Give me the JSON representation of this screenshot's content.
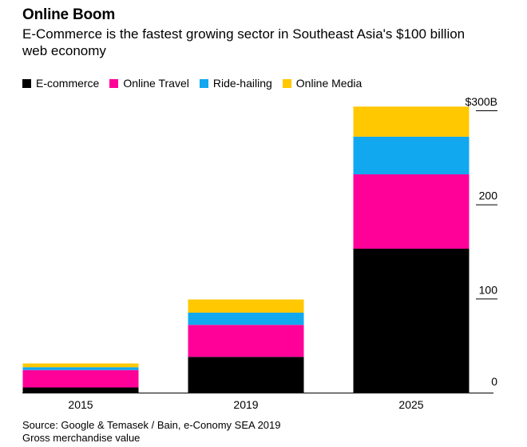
{
  "header": {
    "title": "Online Boom",
    "subtitle": "E-Commerce is the fastest growing sector in Southeast Asia's $100 billion web economy"
  },
  "footer": {
    "source": "Source: Google & Temasek / Bain, e-Conomy SEA 2019",
    "note": "Gross merchandise value"
  },
  "chart_data": {
    "type": "bar",
    "stacked": true,
    "title": "Online Boom",
    "subtitle": "E-Commerce is the fastest growing sector in Southeast Asia's $100 billion web economy",
    "categories": [
      "2015",
      "2019",
      "2025"
    ],
    "series": [
      {
        "name": "E-commerce",
        "color": "#000000",
        "values": [
          5.5,
          38,
          153
        ]
      },
      {
        "name": "Online Travel",
        "color": "#ff0099",
        "values": [
          18.5,
          34,
          79
        ]
      },
      {
        "name": "Ride-hailing",
        "color": "#12a8f0",
        "values": [
          3,
          13,
          40
        ]
      },
      {
        "name": "Online Media",
        "color": "#ffc800",
        "values": [
          4,
          14,
          32
        ]
      }
    ],
    "ylim": [
      0,
      300
    ],
    "yticks": [
      0,
      100,
      200,
      300
    ],
    "ytick_labels": [
      "0",
      "100",
      "200",
      "$300B"
    ],
    "xlabel": "",
    "ylabel": "",
    "legend_position": "top-left",
    "grid": false
  }
}
